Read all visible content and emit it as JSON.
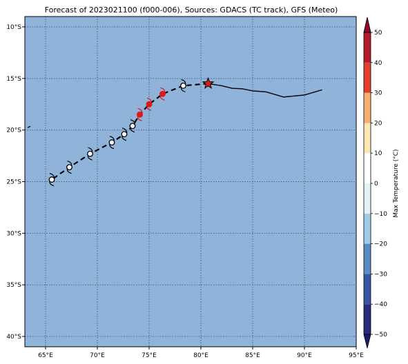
{
  "title": "Forecast of 2023021100 (f000-006), Sources: GDACS (TC track), GFS (Meteo)",
  "map": {
    "lon_range": [
      63,
      95
    ],
    "lat_range": [
      -41,
      -9
    ],
    "ocean_color": "#8fb3d9",
    "grid_color": "#4a5f86",
    "x_ticks": [
      {
        "value": 65,
        "label": "65°E"
      },
      {
        "value": 70,
        "label": "70°E"
      },
      {
        "value": 75,
        "label": "75°E"
      },
      {
        "value": 80,
        "label": "80°E"
      },
      {
        "value": 85,
        "label": "85°E"
      },
      {
        "value": 90,
        "label": "90°E"
      },
      {
        "value": 95,
        "label": "95°E"
      }
    ],
    "y_ticks": [
      {
        "value": -10,
        "label": "10°S"
      },
      {
        "value": -15,
        "label": "15°S"
      },
      {
        "value": -20,
        "label": "20°S"
      },
      {
        "value": -25,
        "label": "25°S"
      },
      {
        "value": -30,
        "label": "30°S"
      },
      {
        "value": -35,
        "label": "35°S"
      },
      {
        "value": -40,
        "label": "40°S"
      }
    ]
  },
  "chart_data": {
    "type": "scatter",
    "title": "Forecast of 2023021100 (f000-006), Sources: GDACS (TC track), GFS (Meteo)",
    "observed_track": [
      [
        91.7,
        -16.1
      ],
      [
        90.0,
        -16.6
      ],
      [
        88.0,
        -16.8
      ],
      [
        86.3,
        -16.3
      ],
      [
        85.0,
        -16.2
      ],
      [
        84.0,
        -16.0
      ],
      [
        83.0,
        -15.95
      ],
      [
        82.0,
        -15.7
      ],
      [
        80.7,
        -15.5
      ]
    ],
    "current_position": {
      "lon": 80.7,
      "lat": -15.5,
      "symbol": "star",
      "color": "#d62020"
    },
    "forecast_track": [
      {
        "lon": 78.3,
        "lat": -15.7,
        "color": "black"
      },
      {
        "lon": 76.3,
        "lat": -16.5,
        "color": "red"
      },
      {
        "lon": 75.0,
        "lat": -17.5,
        "color": "red"
      },
      {
        "lon": 74.1,
        "lat": -18.5,
        "color": "red"
      },
      {
        "lon": 73.4,
        "lat": -19.6,
        "color": "black"
      },
      {
        "lon": 72.6,
        "lat": -20.4,
        "color": "black"
      },
      {
        "lon": 71.4,
        "lat": -21.2,
        "color": "black"
      },
      {
        "lon": 69.3,
        "lat": -22.3,
        "color": "black"
      },
      {
        "lon": 67.3,
        "lat": -23.6,
        "color": "black"
      },
      {
        "lon": 65.6,
        "lat": -24.8,
        "color": "black"
      }
    ],
    "small_mark": {
      "lon": 63.4,
      "lat": -19.7
    }
  },
  "colorbar": {
    "label": "Max Temperature (°C)",
    "range": [
      -50,
      50
    ],
    "ticks": [
      {
        "value": -50,
        "label": "−50"
      },
      {
        "value": -40,
        "label": "−40"
      },
      {
        "value": -30,
        "label": "−30"
      },
      {
        "value": -20,
        "label": "−20"
      },
      {
        "value": -10,
        "label": "−10"
      },
      {
        "value": 0,
        "label": "0"
      },
      {
        "value": 10,
        "label": "10"
      },
      {
        "value": 20,
        "label": "20"
      },
      {
        "value": 30,
        "label": "30"
      },
      {
        "value": 40,
        "label": "40"
      },
      {
        "value": 50,
        "label": "50"
      }
    ],
    "bins": [
      {
        "from": -50,
        "to": -40,
        "color": "#2a2a7e"
      },
      {
        "from": -40,
        "to": -30,
        "color": "#3a56a3"
      },
      {
        "from": -30,
        "to": -20,
        "color": "#5a8cc4"
      },
      {
        "from": -20,
        "to": -10,
        "color": "#a0cde6"
      },
      {
        "from": -10,
        "to": 0,
        "color": "#e4f3f8"
      },
      {
        "from": 0,
        "to": 10,
        "color": "#ffffff"
      },
      {
        "from": 10,
        "to": 20,
        "color": "#fde6b4"
      },
      {
        "from": 20,
        "to": 30,
        "color": "#f8ad72"
      },
      {
        "from": 30,
        "to": 40,
        "color": "#e2402e"
      },
      {
        "from": 40,
        "to": 50,
        "color": "#b31a2c"
      }
    ],
    "extend_low_color": "#1e1c66",
    "extend_high_color": "#8c0a26"
  }
}
